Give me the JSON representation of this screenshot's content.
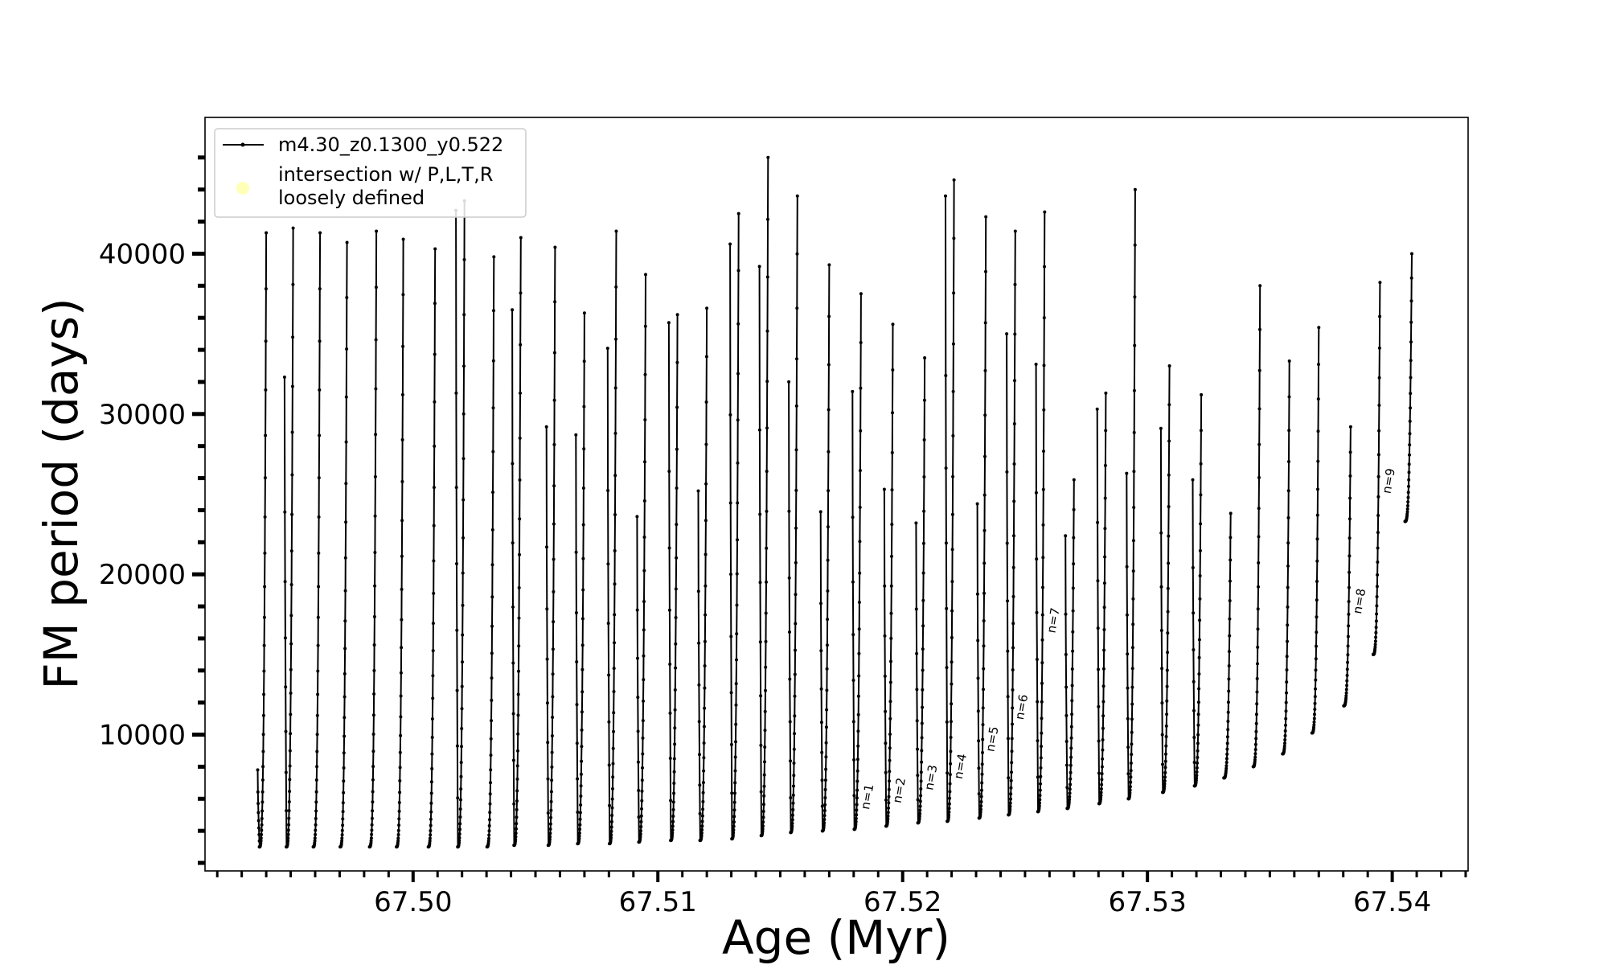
{
  "chart_data": {
    "type": "line",
    "title": "",
    "xlabel": "Age (Myr)",
    "ylabel": "FM period (days)",
    "xlim": [
      67.4915,
      67.5431
    ],
    "ylim": [
      1500,
      48500
    ],
    "x_ticks": [
      67.5,
      67.51,
      67.52,
      67.53,
      67.54
    ],
    "x_tick_labels": [
      "67.50",
      "67.51",
      "67.52",
      "67.53",
      "67.54"
    ],
    "y_ticks": [
      10000,
      20000,
      30000,
      40000
    ],
    "y_tick_labels": [
      "10000",
      "20000",
      "30000",
      "40000"
    ],
    "x_minor_step": 0.001,
    "y_minor_step": 2000,
    "legend": {
      "position": "upper-left",
      "entries": [
        {
          "label": "m4.30_z0.1300_y0.522",
          "style": "line-with-dots",
          "color": "#000000"
        },
        {
          "label_lines": [
            "intersection w/ P,L,T,R",
            "loosely defined"
          ],
          "style": "circle",
          "color": "#ffff99"
        }
      ]
    },
    "series": [
      {
        "name": "m4.30_z0.1300_y0.522",
        "color": "#000000",
        "cycles": [
          {
            "age": 67.494,
            "min": 3000,
            "max": 41300,
            "early": 7800
          },
          {
            "age": 67.4951,
            "min": 3000,
            "max": 41600,
            "early": 32300
          },
          {
            "age": 67.4962,
            "min": 3000,
            "max": 41300
          },
          {
            "age": 67.4973,
            "min": 3000,
            "max": 40700
          },
          {
            "age": 67.4985,
            "min": 3000,
            "max": 41400
          },
          {
            "age": 67.4996,
            "min": 3000,
            "max": 40900
          },
          {
            "age": 67.5009,
            "min": 3000,
            "max": 40300
          },
          {
            "age": 67.5021,
            "min": 3000,
            "max": 43300,
            "early": 42700
          },
          {
            "age": 67.5033,
            "min": 3000,
            "max": 39800
          },
          {
            "age": 67.5044,
            "min": 3100,
            "max": 41000,
            "early": 36500
          },
          {
            "age": 67.5058,
            "min": 3100,
            "max": 40400,
            "early": 29200
          },
          {
            "age": 67.507,
            "min": 3200,
            "max": 36300,
            "early": 28700
          },
          {
            "age": 67.5083,
            "min": 3200,
            "max": 41400,
            "early": 34100
          },
          {
            "age": 67.5095,
            "min": 3300,
            "max": 38700,
            "early": 23600
          },
          {
            "age": 67.5108,
            "min": 3400,
            "max": 36200,
            "early": 35700
          },
          {
            "age": 67.512,
            "min": 3400,
            "max": 36600,
            "early": 25200
          },
          {
            "age": 67.5133,
            "min": 3500,
            "max": 42500,
            "early": 40600
          },
          {
            "age": 67.5145,
            "min": 3700,
            "max": 46000,
            "early": 39200
          },
          {
            "age": 67.5157,
            "min": 3900,
            "max": 43600,
            "early": 32000
          },
          {
            "age": 67.517,
            "min": 4000,
            "max": 39300,
            "early": 23900
          },
          {
            "age": 67.5183,
            "min": 4100,
            "max": 37500,
            "early": 31400
          },
          {
            "age": 67.5196,
            "min": 4300,
            "max": 35600,
            "early": 25300
          },
          {
            "age": 67.5209,
            "min": 4500,
            "max": 33500,
            "early": 23200
          },
          {
            "age": 67.5221,
            "min": 4600,
            "max": 44600,
            "early": 43600
          },
          {
            "age": 67.5234,
            "min": 4800,
            "max": 42300,
            "early": 24400
          },
          {
            "age": 67.5246,
            "min": 5000,
            "max": 41400,
            "early": 35000
          },
          {
            "age": 67.5258,
            "min": 5200,
            "max": 42600,
            "early": 33100
          },
          {
            "age": 67.527,
            "min": 5400,
            "max": 25900,
            "early": 22400
          },
          {
            "age": 67.5283,
            "min": 5700,
            "max": 31300,
            "early": 30300
          },
          {
            "age": 67.5295,
            "min": 6000,
            "max": 44000,
            "early": 26300
          },
          {
            "age": 67.5309,
            "min": 6400,
            "max": 33000,
            "early": 29100
          },
          {
            "age": 67.5322,
            "min": 6800,
            "max": 31200,
            "early": 25900
          },
          {
            "age": 67.5334,
            "min": 7300,
            "max": 23800
          },
          {
            "age": 67.5346,
            "min": 8000,
            "max": 38000
          },
          {
            "age": 67.5358,
            "min": 8800,
            "max": 33300
          },
          {
            "age": 67.537,
            "min": 10100,
            "max": 35400
          },
          {
            "age": 67.5383,
            "min": 11800,
            "max": 29200
          },
          {
            "age": 67.5395,
            "min": 15000,
            "max": 38200
          },
          {
            "age": 67.5408,
            "min": 23300,
            "max": 40000
          }
        ]
      }
    ],
    "annotations": [
      {
        "text": "n=1",
        "x": 67.5183,
        "y": 5300
      },
      {
        "text": "n=2",
        "x": 67.5196,
        "y": 5700
      },
      {
        "text": "n=3",
        "x": 67.5209,
        "y": 6500
      },
      {
        "text": "n=4",
        "x": 67.5221,
        "y": 7200
      },
      {
        "text": "n=5",
        "x": 67.5234,
        "y": 8900
      },
      {
        "text": "n=6",
        "x": 67.5246,
        "y": 10900
      },
      {
        "text": "n=7",
        "x": 67.5259,
        "y": 16300
      },
      {
        "text": "n=8",
        "x": 67.5384,
        "y": 17500
      },
      {
        "text": "n=9",
        "x": 67.5396,
        "y": 25000
      }
    ]
  }
}
